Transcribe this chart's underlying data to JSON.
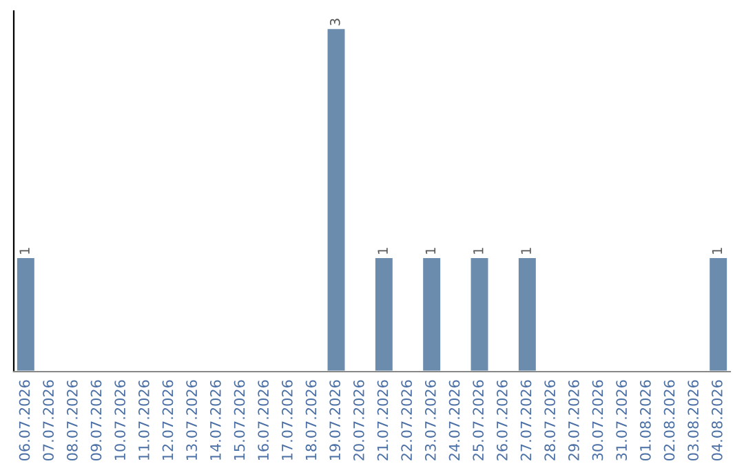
{
  "chart_data": {
    "type": "bar",
    "categories": [
      "06.07.2026",
      "07.07.2026",
      "08.07.2026",
      "09.07.2026",
      "10.07.2026",
      "11.07.2026",
      "12.07.2026",
      "13.07.2026",
      "14.07.2026",
      "15.07.2026",
      "16.07.2026",
      "17.07.2026",
      "18.07.2026",
      "19.07.2026",
      "20.07.2026",
      "21.07.2026",
      "22.07.2026",
      "23.07.2026",
      "24.07.2026",
      "25.07.2026",
      "26.07.2026",
      "27.07.2026",
      "28.07.2026",
      "29.07.2026",
      "30.07.2026",
      "31.07.2026",
      "01.08.2026",
      "02.08.2026",
      "03.08.2026",
      "04.08.2026"
    ],
    "values": [
      1,
      0,
      0,
      0,
      0,
      0,
      0,
      0,
      0,
      0,
      0,
      0,
      0,
      3,
      0,
      1,
      0,
      1,
      0,
      1,
      0,
      1,
      0,
      0,
      0,
      0,
      0,
      0,
      0,
      1
    ],
    "value_labels": [
      "1",
      null,
      null,
      null,
      null,
      null,
      null,
      null,
      null,
      null,
      null,
      null,
      null,
      "3",
      null,
      "1",
      null,
      "1",
      null,
      "1",
      null,
      "1",
      null,
      null,
      null,
      null,
      null,
      null,
      null,
      "1"
    ],
    "color": "#6b8cad",
    "ylim": [
      0,
      3.15
    ],
    "tick_labels": "x",
    "grid": false,
    "legend": false
  }
}
